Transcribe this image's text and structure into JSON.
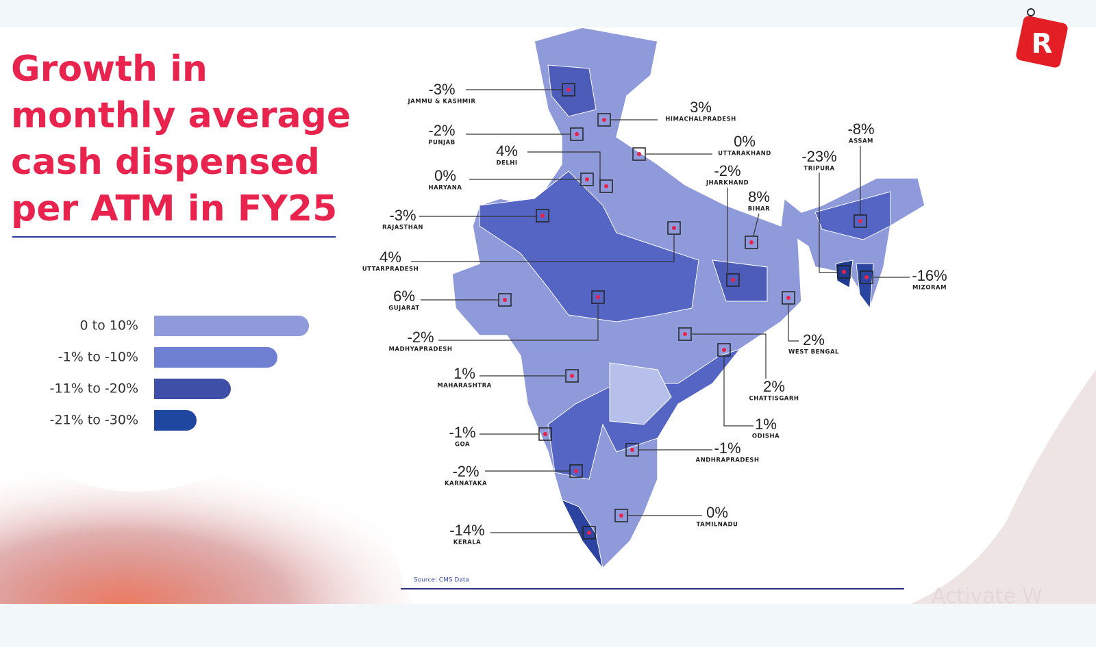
{
  "logo": "R",
  "title_lines": [
    "Growth in",
    "monthly average",
    "cash dispensed",
    "per ATM in FY25"
  ],
  "legend": [
    {
      "label": "0 to 10%",
      "color": "#8e9ad9"
    },
    {
      "label": "-1% to -10%",
      "color": "#6f80d2"
    },
    {
      "label": "-11% to -20%",
      "color": "#3f4ea6"
    },
    {
      "label": "-21% to -30%",
      "color": "#1f47a0"
    }
  ],
  "states": [
    {
      "value": "-3%",
      "name": "JAMMU & KASHMIR"
    },
    {
      "value": "-2%",
      "name": "PUNJAB"
    },
    {
      "value": "4%",
      "name": "DELHI"
    },
    {
      "value": "0%",
      "name": "HARYANA"
    },
    {
      "value": "-3%",
      "name": "RAJASTHAN"
    },
    {
      "value": "4%",
      "name": "UTTARPRADESH"
    },
    {
      "value": "6%",
      "name": "GUJARAT"
    },
    {
      "value": "-2%",
      "name": "MADHYAPRADESH"
    },
    {
      "value": "1%",
      "name": "MAHARASHTRA"
    },
    {
      "value": "-1%",
      "name": "GOA"
    },
    {
      "value": "-2%",
      "name": "KARNATAKA"
    },
    {
      "value": "-14%",
      "name": "KERALA"
    },
    {
      "value": "0%",
      "name": "TAMILNADU"
    },
    {
      "value": "-1%",
      "name": "ANDHRAPRADESH"
    },
    {
      "value": "1%",
      "name": "ODISHA"
    },
    {
      "value": "2%",
      "name": "CHATTISGARH"
    },
    {
      "value": "2%",
      "name": "WEST BENGAL"
    },
    {
      "value": "-2%",
      "name": "JHARKHAND"
    },
    {
      "value": "8%",
      "name": "BIHAR"
    },
    {
      "value": "0%",
      "name": "UTTARAKHAND"
    },
    {
      "value": "3%",
      "name": "HIMACHALPRADESH"
    },
    {
      "value": "-8%",
      "name": "ASSAM"
    },
    {
      "value": "-23%",
      "name": "TRIPURA"
    },
    {
      "value": "-16%",
      "name": "MIZORAM"
    }
  ],
  "source": "Source: CMS Data",
  "watermark": "Activate W"
}
